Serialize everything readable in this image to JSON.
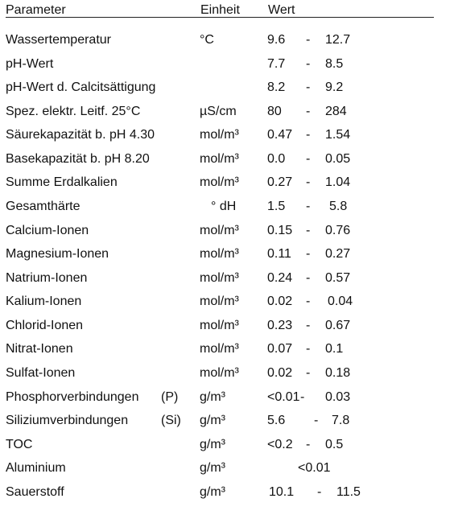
{
  "header": {
    "parameter": "Parameter",
    "unit": "Einheit",
    "value": "Wert"
  },
  "rows": [
    {
      "parameter": "Wassertemperatur",
      "note": "",
      "unit": "°C",
      "min": "9.6",
      "sep": "-",
      "max": "12.7"
    },
    {
      "parameter": "pH-Wert",
      "note": "",
      "unit": "",
      "min": "7.7",
      "sep": "-",
      "max": "8.5"
    },
    {
      "parameter": "pH-Wert d. Calcitsättigung",
      "note": "",
      "unit": "",
      "min": "8.2",
      "sep": "-",
      "max": "9.2"
    },
    {
      "parameter": "Spez. elektr. Leitf. 25°C",
      "note": "",
      "unit": "µS/cm",
      "min": "80",
      "sep": "-",
      "max": "284"
    },
    {
      "parameter": "Säurekapazität b. pH 4.30",
      "note": "",
      "unit": "mol/m³",
      "min": "0.47",
      "sep": "-",
      "max": "1.54"
    },
    {
      "parameter": "Basekapazität b. pH 8.20",
      "note": "",
      "unit": "mol/m³",
      "min": "0.0",
      "sep": "-",
      "max": "0.05"
    },
    {
      "parameter": "Summe Erdalkalien",
      "note": "",
      "unit": "mol/m³",
      "min": "0.27",
      "sep": "-",
      "max": "1.04"
    },
    {
      "parameter": "Gesamthärte",
      "note": "",
      "unit": "° dH",
      "min": "1.5",
      "sep": "-",
      "max": "5.8"
    },
    {
      "parameter": "Calcium-Ionen",
      "note": "",
      "unit": "mol/m³",
      "min": "0.15",
      "sep": "-",
      "max": "0.76"
    },
    {
      "parameter": "Magnesium-Ionen",
      "note": "",
      "unit": "mol/m³",
      "min": "0.11",
      "sep": "-",
      "max": "0.27"
    },
    {
      "parameter": "Natrium-Ionen",
      "note": "",
      "unit": "mol/m³",
      "min": "0.24",
      "sep": "-",
      "max": "0.57"
    },
    {
      "parameter": "Kalium-Ionen",
      "note": "",
      "unit": "mol/m³",
      "min": "0.02",
      "sep": "-",
      "max": "0.04"
    },
    {
      "parameter": "Chlorid-Ionen",
      "note": "",
      "unit": "mol/m³",
      "min": "0.23",
      "sep": "-",
      "max": "0.67"
    },
    {
      "parameter": "Nitrat-Ionen",
      "note": "",
      "unit": "mol/m³",
      "min": "0.07",
      "sep": "-",
      "max": "0.1"
    },
    {
      "parameter": "Sulfat-Ionen",
      "note": "",
      "unit": "mol/m³",
      "min": "0.02",
      "sep": "-",
      "max": "0.18"
    },
    {
      "parameter": "Phosphorverbindungen",
      "note": "(P)",
      "unit": "g/m³",
      "min": "<0.01",
      "sep": "-",
      "max": "0.03"
    },
    {
      "parameter": "Siliziumverbindungen",
      "note": "(Si)",
      "unit": "g/m³",
      "min": "5.6",
      "sep": "-",
      "max": "7.8"
    },
    {
      "parameter": "TOC",
      "note": "",
      "unit": "g/m³",
      "min": "<0.2",
      "sep": "-",
      "max": "0.5"
    },
    {
      "parameter": "Aluminium",
      "note": "",
      "unit": "g/m³",
      "single": "<0.01"
    },
    {
      "parameter": "Sauerstoff",
      "note": "",
      "unit": "g/m³",
      "min": "10.1",
      "sep": "-",
      "max": "11.5"
    }
  ]
}
